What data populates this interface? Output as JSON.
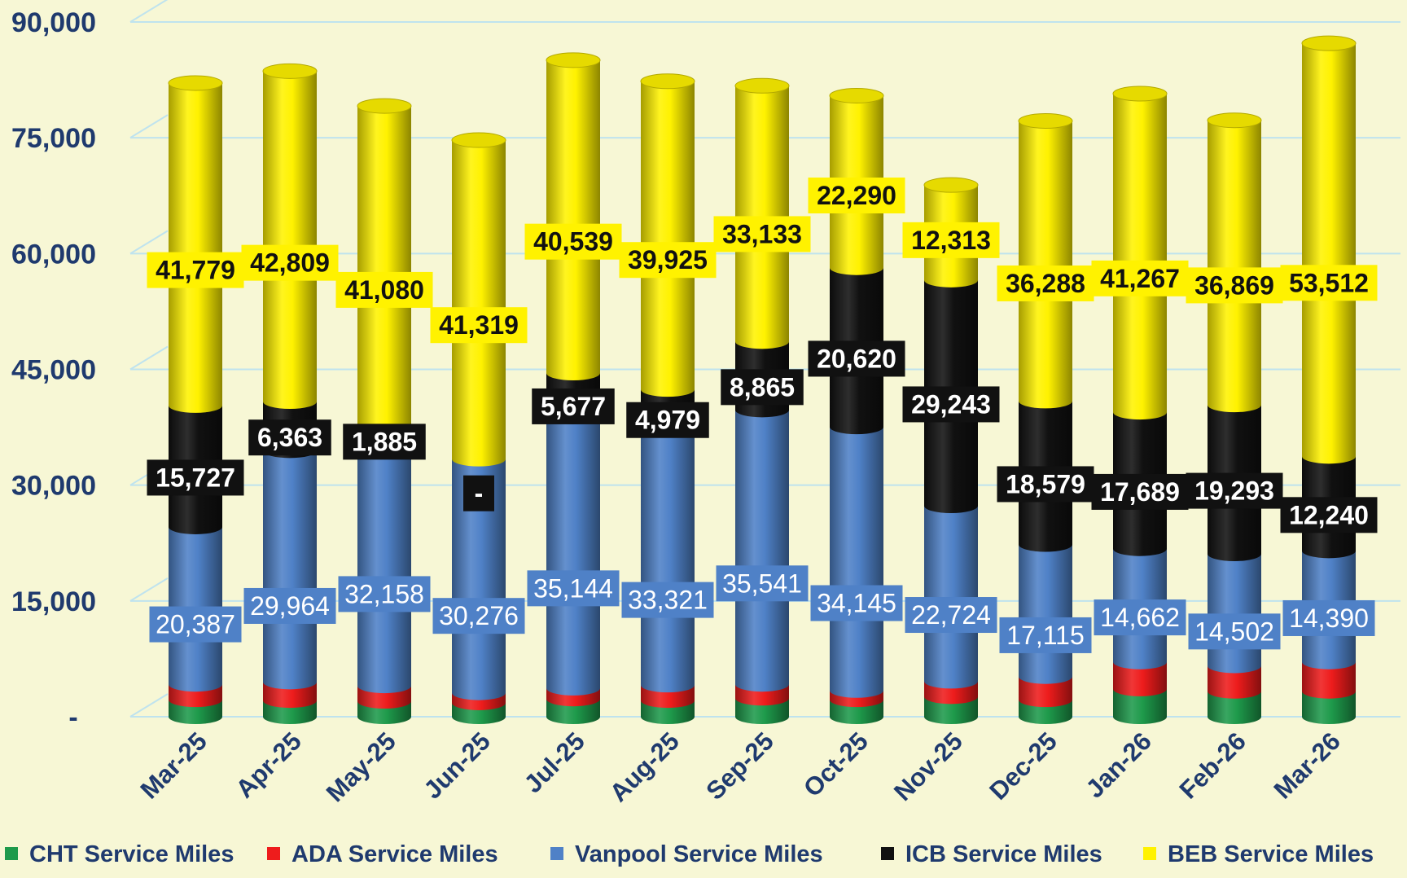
{
  "colors": {
    "background": "#f7f7d5",
    "axis_text": "#1f3a6e",
    "gridline": "#bfe3ee",
    "CHT": "#1e9a4b",
    "ADA": "#ee1c1c",
    "Vanpool": "#4f81c7",
    "ICB": "#111111",
    "BEB": "#fff200"
  },
  "chart_data": {
    "type": "bar",
    "stacked": true,
    "style": "3d-cylinder",
    "title": "",
    "xlabel": "",
    "ylabel": "",
    "ylim": [
      0,
      90000
    ],
    "yticks": [
      0,
      15000,
      30000,
      45000,
      60000,
      75000,
      90000
    ],
    "ytick_labels": [
      "-",
      "15,000",
      "30,000",
      "45,000",
      "60,000",
      "75,000",
      "90,000"
    ],
    "grid": true,
    "legend_position": "bottom",
    "categories": [
      "Mar-25",
      "Apr-25",
      "May-25",
      "Jun-25",
      "Jul-25",
      "Aug-25",
      "Sep-25",
      "Oct-25",
      "Nov-25",
      "Dec-25",
      "Jan-26",
      "Feb-26",
      "Mar-26"
    ],
    "series": [
      {
        "name": "CHT Service Miles",
        "color": "#1e9a4b",
        "values": [
          2200,
          2100,
          2000,
          1800,
          2300,
          2100,
          2400,
          2200,
          2600,
          2200,
          3600,
          3300,
          3300
        ],
        "labels": null
      },
      {
        "name": "ADA Service Miles",
        "color": "#ee1c1c",
        "values": [
          2000,
          2400,
          2000,
          1300,
          1400,
          2000,
          1800,
          1200,
          2000,
          3000,
          3500,
          3300,
          3800
        ],
        "labels": null
      },
      {
        "name": "Vanpool Service Miles",
        "color": "#4f81c7",
        "values": [
          20387,
          29964,
          32158,
          30276,
          35144,
          33321,
          35541,
          34145,
          22724,
          17115,
          14662,
          14502,
          14390
        ],
        "labels": [
          "20,387",
          "29,964",
          "32,158",
          "30,276",
          "35,144",
          "33,321",
          "35,541",
          "34,145",
          "22,724",
          "17,115",
          "14,662",
          "14,502",
          "14,390"
        ]
      },
      {
        "name": "ICB Service Miles",
        "color": "#111111",
        "values": [
          15727,
          6363,
          1885,
          0,
          5677,
          4979,
          8865,
          20620,
          29243,
          18579,
          17689,
          19293,
          12240
        ],
        "labels": [
          "15,727",
          "6,363",
          "1,885",
          "-",
          "5,677",
          "4,979",
          "8,865",
          "20,620",
          "29,243",
          "18,579",
          "17,689",
          "19,293",
          "12,240"
        ]
      },
      {
        "name": "BEB Service Miles",
        "color": "#fff200",
        "values": [
          41779,
          42809,
          41080,
          41319,
          40539,
          39925,
          33133,
          22290,
          12313,
          36288,
          41267,
          36869,
          53512
        ],
        "labels": [
          "41,779",
          "42,809",
          "41,080",
          "41,319",
          "40,539",
          "39,925",
          "33,133",
          "22,290",
          "12,313",
          "36,288",
          "41,267",
          "36,869",
          "53,512"
        ]
      }
    ]
  }
}
